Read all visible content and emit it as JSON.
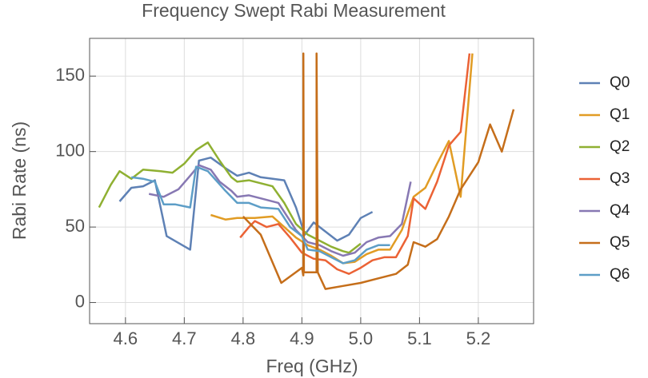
{
  "chart_data": {
    "type": "line",
    "title": "Frequency Swept Rabi Measurement",
    "xlabel": "Freq (GHz)",
    "ylabel": "Rabi Rate (ns)",
    "xlim": [
      4.539,
      5.294
    ],
    "ylim": [
      -14,
      175
    ],
    "xticks": [
      4.6,
      4.7,
      4.8,
      4.9,
      {
        "value": 5,
        "label": "5.0"
      },
      5.1,
      5.2
    ],
    "yticks": [
      0,
      50,
      100,
      150
    ],
    "grid": true,
    "legend": "right",
    "series": [
      {
        "name": "Q0",
        "color": "#5e81b5",
        "x": [
          4.59,
          4.61,
          4.63,
          4.65,
          4.67,
          4.71,
          4.725,
          4.745,
          4.77,
          4.79,
          4.81,
          4.83,
          4.87,
          4.89,
          4.905,
          4.92,
          4.94,
          4.96,
          4.98,
          5.0,
          5.02
        ],
        "values": [
          67,
          76,
          77,
          81,
          44,
          35,
          94,
          96,
          89,
          84,
          86,
          83,
          81,
          63,
          45,
          53,
          47,
          41,
          45,
          56,
          60
        ]
      },
      {
        "name": "Q1",
        "color": "#e19c24",
        "x": [
          4.745,
          4.77,
          4.79,
          4.82,
          4.85,
          4.87,
          4.89,
          4.91,
          4.93,
          4.95,
          4.97,
          4.99,
          5.01,
          5.03,
          5.05,
          5.07,
          5.09,
          5.11,
          5.13,
          5.15,
          5.17,
          5.19
        ],
        "values": [
          58,
          55,
          56,
          56,
          57,
          50,
          43,
          38,
          35,
          31,
          26,
          27,
          32,
          35,
          35,
          48,
          70,
          76,
          92,
          107,
          70,
          165
        ]
      },
      {
        "name": "Q2",
        "color": "#8fb032",
        "x": [
          4.555,
          4.575,
          4.59,
          4.61,
          4.63,
          4.66,
          4.68,
          4.7,
          4.72,
          4.74,
          4.76,
          4.78,
          4.79,
          4.81,
          4.83,
          4.85,
          4.87,
          4.89,
          4.91,
          4.93,
          4.95,
          4.97,
          4.98,
          5.0
        ],
        "values": [
          63,
          78,
          87,
          82,
          88,
          87,
          86,
          92,
          101,
          106,
          94,
          83,
          80,
          81,
          79,
          77,
          66,
          52,
          45,
          41,
          37,
          34,
          33,
          39
        ]
      },
      {
        "name": "Q3",
        "color": "#eb6235",
        "x": [
          4.795,
          4.81,
          4.82,
          4.84,
          4.86,
          4.88,
          4.9,
          4.92,
          4.94,
          4.96,
          4.98,
          5.0,
          5.02,
          5.04,
          5.06,
          5.08,
          5.09,
          5.11,
          5.13,
          5.15,
          5.17,
          5.185
        ],
        "values": [
          43,
          50,
          54,
          50,
          52,
          43,
          33,
          29,
          28,
          22,
          19,
          23,
          28,
          30,
          30,
          44,
          69,
          62,
          80,
          104,
          113,
          165
        ]
      },
      {
        "name": "Q4",
        "color": "#8778b3",
        "x": [
          4.64,
          4.665,
          4.69,
          4.71,
          4.725,
          4.745,
          4.76,
          4.78,
          4.79,
          4.81,
          4.83,
          4.86,
          4.88,
          4.89,
          4.91,
          4.93,
          4.95,
          4.97,
          4.99,
          5.01,
          5.03,
          5.05,
          5.07,
          5.085
        ],
        "values": [
          72,
          70,
          75,
          84,
          91,
          88,
          80,
          74,
          70,
          71,
          69,
          66,
          54,
          48,
          40,
          38,
          34,
          31,
          33,
          40,
          43,
          44,
          52,
          80
        ]
      },
      {
        "name": "Q5",
        "color": "#c56e1a",
        "x": [
          4.8,
          4.83,
          4.865,
          4.9,
          4.9025,
          4.9025,
          4.9035,
          4.925,
          4.925,
          4.927,
          4.94,
          4.97,
          5.0,
          5.03,
          5.06,
          5.08,
          5.09,
          5.11,
          5.13,
          5.15,
          5.17,
          5.2,
          5.22,
          5.24,
          5.26
        ],
        "values": [
          57,
          45,
          13,
          23,
          18,
          165,
          20,
          20,
          165,
          20,
          9,
          11,
          13,
          16,
          19,
          25,
          40,
          37,
          42,
          57,
          75,
          93,
          118,
          100,
          128
        ]
      },
      {
        "name": "Q6",
        "color": "#5d9ec7",
        "x": [
          4.61,
          4.63,
          4.65,
          4.665,
          4.685,
          4.71,
          4.72,
          4.74,
          4.77,
          4.79,
          4.81,
          4.83,
          4.86,
          4.88,
          4.9,
          4.91,
          4.93,
          4.95,
          4.97,
          4.99,
          5.01,
          5.03,
          5.05
        ],
        "values": [
          83,
          82,
          80,
          65,
          65,
          63,
          90,
          87,
          74,
          66,
          66,
          63,
          62,
          50,
          44,
          35,
          34,
          30,
          26,
          28,
          35,
          38,
          38
        ]
      }
    ]
  }
}
